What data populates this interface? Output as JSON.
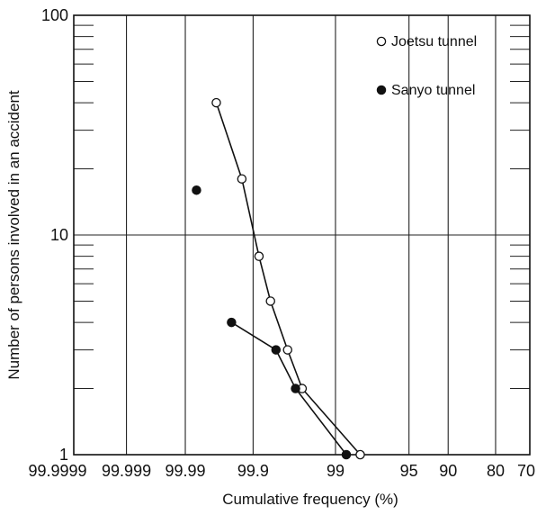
{
  "chart_data": {
    "type": "scatter",
    "title": "",
    "xlabel": "Cumulative frequency (%)",
    "ylabel": "Number of persons involved in an accident",
    "x_scale": "probability",
    "y_scale": "log",
    "ylim": [
      1,
      100
    ],
    "grid": true,
    "legend_position": "top-right",
    "x_tick_labels": [
      "99.9999",
      "99.999",
      "99.99",
      "99.9",
      "99",
      "95",
      "90",
      "80",
      "70"
    ],
    "y_tick_labels": [
      "1",
      "10",
      "100"
    ],
    "series": [
      {
        "name": "Joetsu tunnel",
        "marker": "open-circle",
        "points": [
          {
            "x": 99.97,
            "y": 40
          },
          {
            "x": 99.93,
            "y": 18
          },
          {
            "x": 99.88,
            "y": 8
          },
          {
            "x": 99.83,
            "y": 5
          },
          {
            "x": 99.72,
            "y": 3
          },
          {
            "x": 99.58,
            "y": 2
          },
          {
            "x": 98.2,
            "y": 1
          }
        ]
      },
      {
        "name": "Sanyo tunnel",
        "marker": "filled-circle",
        "points": [
          {
            "x": 99.985,
            "y": 16
          },
          {
            "x": 99.95,
            "y": 4
          },
          {
            "x": 99.8,
            "y": 3
          },
          {
            "x": 99.65,
            "y": 2
          },
          {
            "x": 98.7,
            "y": 1
          }
        ]
      }
    ]
  }
}
